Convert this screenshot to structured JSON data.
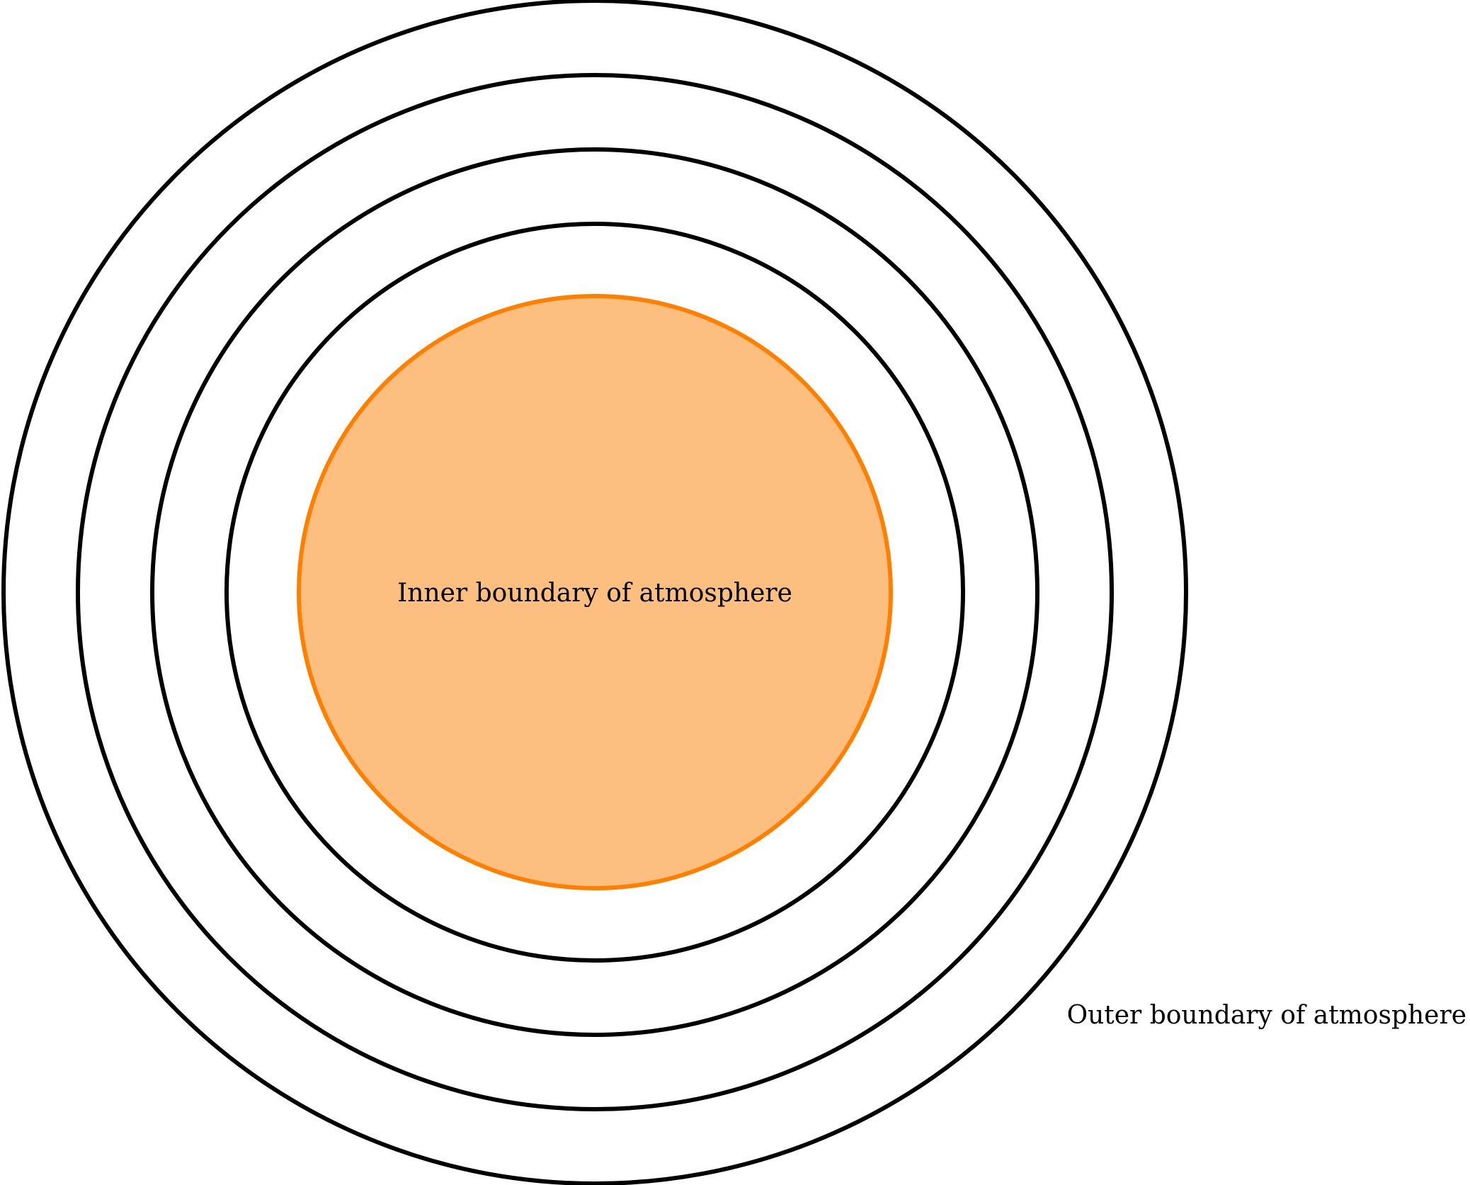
{
  "diagram": {
    "inner_label": "Inner boundary of atmosphere",
    "outer_label": "Outer boundary of atmosphere",
    "colors": {
      "core_fill": "#fdbf7f",
      "core_stroke": "#ff8000",
      "ring_stroke": "#000000",
      "background": "#ffffff"
    },
    "ring_count": 4
  }
}
